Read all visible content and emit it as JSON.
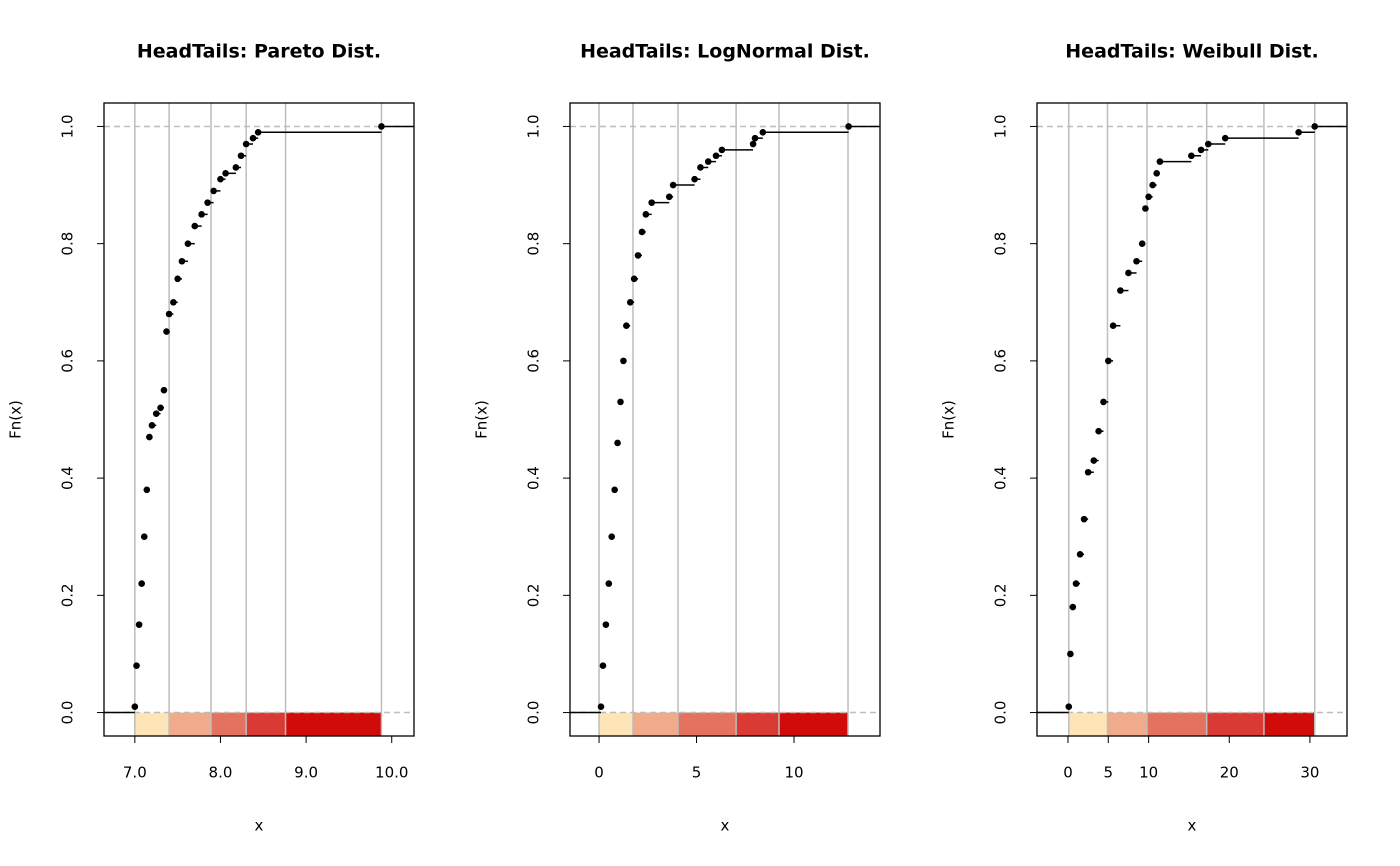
{
  "chart_data": [
    {
      "type": "ecdf",
      "title": "HeadTails: Pareto Dist.",
      "xlabel": "x",
      "ylabel": "Fn(x)",
      "xlim": [
        6.64,
        10.26
      ],
      "ylim": [
        -0.04,
        1.04
      ],
      "xticks": [
        {
          "value": 7,
          "label": "7.0"
        },
        {
          "value": 8,
          "label": "8.0"
        },
        {
          "value": 9,
          "label": "9.0"
        },
        {
          "value": 10,
          "label": "10.0"
        }
      ],
      "yticks": [
        {
          "value": 0,
          "label": "0.0"
        },
        0.2,
        0.4,
        0.6,
        0.8,
        {
          "value": 1,
          "label": "1.0"
        }
      ],
      "reference_lines": [
        0,
        1
      ],
      "breaks": [
        7.0,
        7.4,
        7.89,
        8.3,
        8.76,
        9.88
      ],
      "colors": [
        "#fde5b7",
        "#efab8b",
        "#e3725f",
        "#d93b34",
        "#d10a0a"
      ],
      "x": [
        7.0,
        7.02,
        7.05,
        7.08,
        7.11,
        7.14,
        7.17,
        7.2,
        7.25,
        7.3,
        7.34,
        7.37,
        7.4,
        7.45,
        7.5,
        7.55,
        7.62,
        7.7,
        7.78,
        7.85,
        7.92,
        8.0,
        8.06,
        8.18,
        8.24,
        8.3,
        8.38,
        8.44,
        9.88
      ],
      "y": [
        0.01,
        0.08,
        0.15,
        0.22,
        0.3,
        0.38,
        0.47,
        0.49,
        0.51,
        0.52,
        0.55,
        0.65,
        0.68,
        0.7,
        0.74,
        0.77,
        0.8,
        0.83,
        0.85,
        0.87,
        0.89,
        0.91,
        0.92,
        0.93,
        0.95,
        0.97,
        0.98,
        0.99,
        1.0
      ]
    },
    {
      "type": "ecdf",
      "title": "HeadTails: LogNormal Dist.",
      "xlabel": "x",
      "ylabel": "Fn(x)",
      "xlim": [
        -1.49,
        14.41
      ],
      "ylim": [
        -0.04,
        1.04
      ],
      "xticks": [
        0,
        5,
        10
      ],
      "yticks": [
        {
          "value": 0,
          "label": "0.0"
        },
        0.2,
        0.4,
        0.6,
        0.8,
        {
          "value": 1,
          "label": "1.0"
        }
      ],
      "reference_lines": [
        0,
        1
      ],
      "breaks": [
        0.0,
        1.74,
        4.05,
        7.03,
        9.23,
        12.77
      ],
      "colors": [
        "#fde5b7",
        "#efab8b",
        "#e3725f",
        "#d93b34",
        "#d10a0a"
      ],
      "x": [
        0.1,
        0.2,
        0.35,
        0.5,
        0.65,
        0.8,
        0.95,
        1.1,
        1.25,
        1.4,
        1.6,
        1.8,
        2.0,
        2.2,
        2.4,
        2.7,
        3.6,
        3.8,
        4.9,
        5.2,
        5.6,
        6.0,
        6.3,
        7.9,
        8.0,
        8.4,
        12.8
      ],
      "y": [
        0.01,
        0.08,
        0.15,
        0.22,
        0.3,
        0.38,
        0.46,
        0.53,
        0.6,
        0.66,
        0.7,
        0.74,
        0.78,
        0.82,
        0.85,
        0.87,
        0.88,
        0.9,
        0.91,
        0.93,
        0.94,
        0.95,
        0.96,
        0.97,
        0.98,
        0.99,
        1.0
      ]
    },
    {
      "type": "ecdf",
      "title": "HeadTails: Weibull Dist.",
      "xlabel": "x",
      "ylabel": "Fn(x)",
      "xlim": [
        -3.84,
        34.6
      ],
      "ylim": [
        -0.04,
        1.04
      ],
      "xticks": [
        0,
        5,
        10,
        20,
        30
      ],
      "yticks": [
        {
          "value": 0,
          "label": "0.0"
        },
        0.2,
        0.4,
        0.6,
        0.8,
        {
          "value": 1,
          "label": "1.0"
        }
      ],
      "reference_lines": [
        0,
        1
      ],
      "breaks": [
        0.1,
        4.9,
        9.8,
        17.2,
        24.3,
        30.6
      ],
      "colors": [
        "#fde5b7",
        "#efab8b",
        "#e3725f",
        "#d93b34",
        "#d10a0a"
      ],
      "x": [
        0.1,
        0.3,
        0.6,
        1.0,
        1.5,
        2.0,
        2.5,
        3.2,
        3.8,
        4.4,
        5.0,
        5.6,
        6.5,
        7.5,
        8.5,
        9.2,
        9.6,
        10.0,
        10.5,
        11.0,
        11.4,
        15.3,
        16.5,
        17.4,
        19.5,
        28.6,
        30.6
      ],
      "y": [
        0.01,
        0.1,
        0.18,
        0.22,
        0.27,
        0.33,
        0.41,
        0.43,
        0.48,
        0.53,
        0.6,
        0.66,
        0.72,
        0.75,
        0.77,
        0.8,
        0.86,
        0.88,
        0.9,
        0.92,
        0.94,
        0.95,
        0.96,
        0.97,
        0.98,
        0.99,
        1.0
      ]
    }
  ]
}
